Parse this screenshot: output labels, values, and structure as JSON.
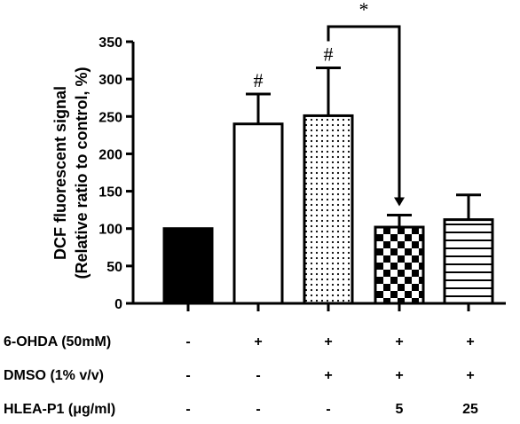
{
  "chart_data": {
    "type": "bar",
    "ylabel_line1": "DCF fluorescent signal",
    "ylabel_line2": "(Relative ratio to control, %)",
    "ylim": [
      0,
      350
    ],
    "yticks": [
      0,
      50,
      100,
      150,
      200,
      250,
      300,
      350
    ],
    "grid": false,
    "values": [
      100,
      240,
      251,
      102,
      112
    ],
    "errors": [
      0,
      40,
      64,
      16,
      33
    ],
    "fills": [
      "solid-black",
      "white",
      "dots",
      "checker",
      "horizontal-lines"
    ],
    "annotations": [
      "",
      "#",
      "#",
      "",
      ""
    ],
    "significance": {
      "from_bar": 2,
      "to_bar": 3,
      "label": "*"
    },
    "conditions": [
      {
        "label": "6-OHDA (50mM)",
        "cells": [
          "-",
          "+",
          "+",
          "+",
          "+"
        ]
      },
      {
        "label": "DMSO (1% v/v)",
        "cells": [
          "-",
          "-",
          "+",
          "+",
          "+"
        ]
      },
      {
        "label": "HLEA-P1 (μg/ml)",
        "cells": [
          "-",
          "-",
          "-",
          "5",
          "25"
        ]
      }
    ]
  }
}
